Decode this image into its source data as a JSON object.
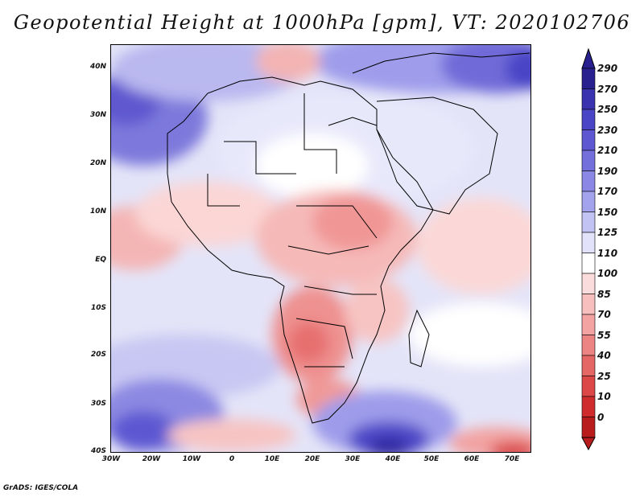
{
  "title": "Geopotential Height at 1000hPa [gpm], VT: 2020102706",
  "credit": "GrADS: IGES/COLA",
  "lat_labels": [
    "40N",
    "30N",
    "20N",
    "10N",
    "EQ",
    "10S",
    "20S",
    "30S",
    "40S"
  ],
  "lon_labels": [
    "30W",
    "20W",
    "10W",
    "0",
    "10E",
    "20E",
    "30E",
    "40E",
    "50E",
    "60E",
    "70E"
  ],
  "colorbar": {
    "labels": [
      "290",
      "270",
      "250",
      "230",
      "210",
      "190",
      "170",
      "150",
      "125",
      "110",
      "100",
      "85",
      "70",
      "55",
      "40",
      "25",
      "10",
      "0"
    ],
    "colors": [
      "#28208f",
      "#3a33b0",
      "#4a45c6",
      "#5d58d2",
      "#7370dc",
      "#8a88e4",
      "#a3a2ec",
      "#c3c3f3",
      "#e2e2fa",
      "#ffffff",
      "#fbdcdc",
      "#f7c0bf",
      "#f2a3a2",
      "#ec8483",
      "#e46665",
      "#dc4848",
      "#cf2d2d",
      "#b91c1c"
    ]
  },
  "map": {
    "lon_range": [
      -30,
      75
    ],
    "lat_range": [
      -40,
      45
    ],
    "variable": "Geopotential Height at 1000hPa",
    "units": "gpm",
    "valid_time": "2020102706"
  }
}
